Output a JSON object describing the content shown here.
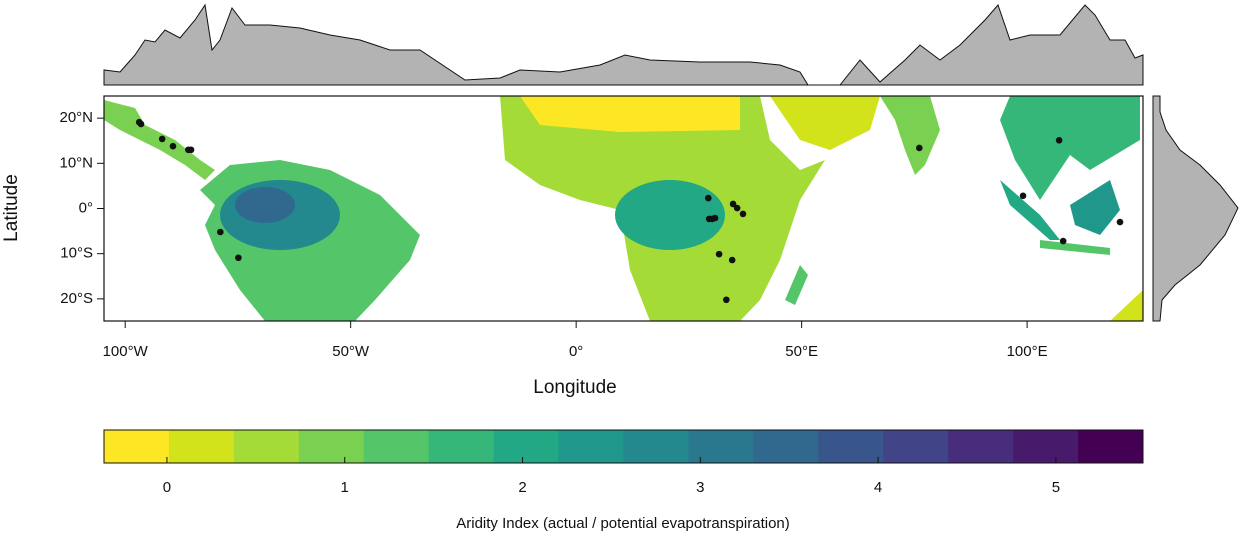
{
  "chart_data": {
    "type": "scatter",
    "x_label": "Longitude",
    "y_label": "Latitude",
    "xlim": [
      -104.7,
      125.7
    ],
    "ylim": [
      -24.9,
      24.9
    ],
    "xticks": [
      {
        "value": -100,
        "label": "100°W"
      },
      {
        "value": -50,
        "label": "50°W"
      },
      {
        "value": 0,
        "label": "0°"
      },
      {
        "value": 50,
        "label": "50°E"
      },
      {
        "value": 100,
        "label": "100°E"
      }
    ],
    "yticks": [
      {
        "value": 20,
        "label": "20°N"
      },
      {
        "value": 10,
        "label": "10°N"
      },
      {
        "value": 0,
        "label": "0°"
      },
      {
        "value": -10,
        "label": "10°S"
      },
      {
        "value": -20,
        "label": "20°S"
      }
    ],
    "x": [
      -96.9,
      -96.5,
      -91.8,
      -89.4,
      -86.0,
      -85.4,
      -78.9,
      -74.9,
      29.3,
      29.5,
      30.2,
      30.8,
      34.8,
      35.7,
      37.0,
      31.7,
      34.6,
      33.3,
      76.1,
      99.1,
      107.1,
      108.0,
      120.6
    ],
    "values": [
      19.1,
      18.7,
      15.4,
      13.8,
      13.0,
      13.0,
      -5.2,
      -10.9,
      2.3,
      -2.3,
      -2.3,
      -2.1,
      1.0,
      0.1,
      -1.2,
      -10.1,
      -11.4,
      -20.2,
      13.4,
      2.8,
      15.1,
      -7.2,
      -3.0
    ],
    "color": "#111111",
    "colorbar": {
      "label": "Aridity Index (actual / potential evapotranspiration)",
      "lim": [
        -0.354,
        5.49
      ],
      "ticks": [
        0,
        1,
        2,
        3,
        4,
        5
      ],
      "colors": [
        "#fde725",
        "#d2e21b",
        "#a5db36",
        "#7ad151",
        "#54c568",
        "#35b779",
        "#22a884",
        "#1f988b",
        "#23898e",
        "#2a788e",
        "#31688e",
        "#39568c",
        "#414487",
        "#472d7b",
        "#481a6c",
        "#440154"
      ]
    }
  }
}
